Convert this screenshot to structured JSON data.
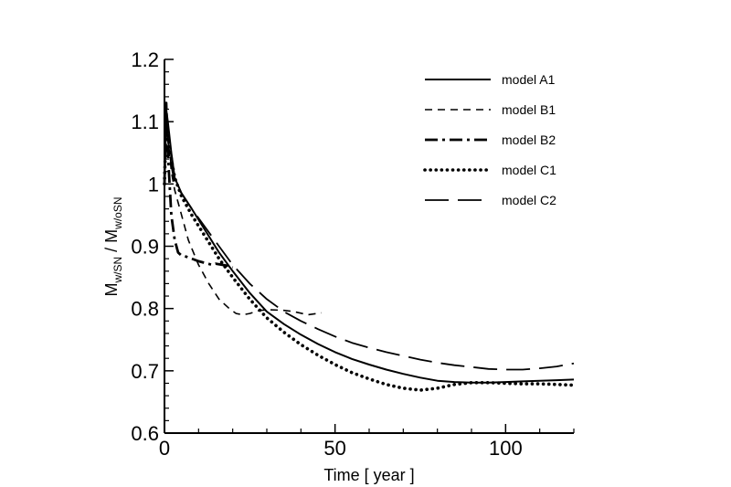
{
  "chart_data": {
    "type": "line",
    "xlabel": "Time [ year ]",
    "ylabel": {
      "main": "M",
      "num_sub": "w/SN",
      "sep": " / ",
      "den_main": "M",
      "den_sub": "w/oSN"
    },
    "xlim": [
      0,
      120
    ],
    "ylim": [
      0.6,
      1.2
    ],
    "xticks": [
      0,
      50,
      100
    ],
    "yticks": [
      0.6,
      0.7,
      0.8,
      0.9,
      1.0,
      1.1,
      1.2
    ],
    "ytick_labels": [
      "0.6",
      "0.7",
      "0.8",
      "0.9",
      "1",
      "1.1",
      "1.2"
    ],
    "grid": false,
    "legend_position": "top-right",
    "series": [
      {
        "name": "model A1",
        "style": "solid",
        "x": [
          0,
          0.5,
          1,
          2,
          3,
          5,
          8,
          12,
          16,
          20,
          25,
          30,
          35,
          40,
          45,
          50,
          55,
          60,
          65,
          70,
          75,
          80,
          85,
          90,
          95,
          100,
          105,
          110,
          115,
          120
        ],
        "y": [
          1.0,
          1.12,
          1.1,
          1.05,
          1.01,
          0.985,
          0.96,
          0.925,
          0.89,
          0.86,
          0.825,
          0.795,
          0.775,
          0.758,
          0.743,
          0.73,
          0.719,
          0.71,
          0.702,
          0.695,
          0.689,
          0.684,
          0.682,
          0.681,
          0.681,
          0.682,
          0.683,
          0.684,
          0.685,
          0.686
        ]
      },
      {
        "name": "model B1",
        "style": "dashed",
        "x": [
          0,
          0.5,
          1,
          2,
          3,
          5,
          7,
          10,
          13,
          16,
          19,
          21,
          23,
          25,
          28,
          31,
          35,
          38,
          42,
          46
        ],
        "y": [
          1.0,
          1.11,
          1.08,
          1.02,
          0.99,
          0.95,
          0.91,
          0.87,
          0.84,
          0.815,
          0.8,
          0.792,
          0.79,
          0.792,
          0.797,
          0.798,
          0.797,
          0.795,
          0.79,
          0.793
        ]
      },
      {
        "name": "model B2",
        "style": "dashdot",
        "x": [
          0,
          0.5,
          1,
          2,
          3,
          4,
          5,
          6,
          8,
          10,
          12,
          14,
          15,
          17,
          19,
          20
        ],
        "y": [
          1.0,
          1.13,
          1.05,
          0.95,
          0.91,
          0.89,
          0.885,
          0.884,
          0.88,
          0.876,
          0.873,
          0.87,
          0.872,
          0.87,
          0.868,
          0.866
        ]
      },
      {
        "name": "model C1",
        "style": "dotted",
        "x": [
          0,
          0.5,
          1,
          2,
          3,
          5,
          8,
          12,
          16,
          20,
          25,
          30,
          35,
          40,
          45,
          50,
          55,
          60,
          65,
          70,
          75,
          80,
          85,
          90,
          95,
          100,
          105,
          110,
          115,
          120
        ],
        "y": [
          1.0,
          1.11,
          1.08,
          1.04,
          1.01,
          0.98,
          0.95,
          0.915,
          0.88,
          0.85,
          0.815,
          0.785,
          0.762,
          0.742,
          0.725,
          0.71,
          0.697,
          0.687,
          0.678,
          0.672,
          0.669,
          0.672,
          0.678,
          0.681,
          0.681,
          0.68,
          0.679,
          0.679,
          0.678,
          0.677
        ]
      },
      {
        "name": "model C2",
        "style": "longdash",
        "x": [
          0,
          0.5,
          1,
          2,
          3,
          5,
          8,
          12,
          16,
          20,
          25,
          30,
          35,
          40,
          45,
          50,
          55,
          60,
          65,
          70,
          75,
          80,
          85,
          90,
          95,
          100,
          105,
          110,
          115,
          120
        ],
        "y": [
          1.0,
          1.1,
          1.07,
          1.03,
          1.0,
          0.985,
          0.96,
          0.93,
          0.9,
          0.87,
          0.84,
          0.815,
          0.795,
          0.78,
          0.767,
          0.755,
          0.745,
          0.737,
          0.73,
          0.724,
          0.718,
          0.713,
          0.709,
          0.706,
          0.703,
          0.702,
          0.702,
          0.704,
          0.707,
          0.712
        ]
      }
    ]
  }
}
